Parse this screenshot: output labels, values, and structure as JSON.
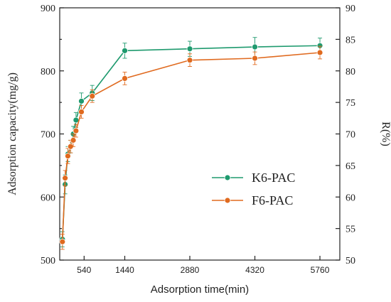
{
  "chart_data": {
    "type": "line",
    "xlabel": "Adsorption time(min)",
    "ylabel": "Adsorption capacity(mg/g)",
    "y2label": "R(%)",
    "xlim": [
      0,
      6200
    ],
    "ylim": [
      500,
      900
    ],
    "y2lim": [
      50,
      90
    ],
    "xticks": [
      540,
      1440,
      2880,
      4320,
      5760
    ],
    "yticks": [
      500,
      600,
      700,
      800,
      900
    ],
    "y2ticks": [
      50,
      55,
      60,
      65,
      70,
      75,
      80,
      85,
      90
    ],
    "legend_position": "center-right",
    "series": [
      {
        "name": "K6-PAC",
        "color": "#1e9a6e",
        "x": [
          60,
          120,
          180,
          240,
          300,
          360,
          480,
          720,
          1440,
          2880,
          4320,
          5760
        ],
        "y": [
          533,
          620,
          668,
          680,
          700,
          722,
          752,
          765,
          832,
          835,
          838,
          840
        ],
        "error": [
          12,
          15,
          12,
          10,
          12,
          12,
          13,
          12,
          12,
          12,
          15,
          12
        ]
      },
      {
        "name": "F6-PAC",
        "color": "#e06a1f",
        "x": [
          60,
          120,
          180,
          240,
          300,
          360,
          480,
          720,
          1440,
          2880,
          4320,
          5760
        ],
        "y": [
          529,
          630,
          665,
          680,
          690,
          705,
          735,
          760,
          788,
          817,
          820,
          829
        ],
        "error": [
          12,
          12,
          12,
          10,
          10,
          10,
          10,
          10,
          10,
          10,
          10,
          10
        ]
      }
    ]
  }
}
